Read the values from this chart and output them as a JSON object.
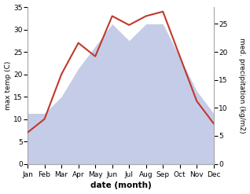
{
  "months": [
    "Jan",
    "Feb",
    "Mar",
    "Apr",
    "May",
    "Jun",
    "Jul",
    "Aug",
    "Sep",
    "Oct",
    "Nov",
    "Dec"
  ],
  "month_indices": [
    1,
    2,
    3,
    4,
    5,
    6,
    7,
    8,
    9,
    10,
    11,
    12
  ],
  "temperature": [
    7,
    10,
    20,
    27,
    24,
    33,
    31,
    33,
    34,
    24,
    14,
    9
  ],
  "precipitation": [
    9,
    9,
    12,
    17,
    21,
    25,
    22,
    25,
    25,
    19,
    13,
    9
  ],
  "temp_color": "#c0392b",
  "precip_fill_color": "#c5cce8",
  "temp_ylim": [
    0,
    35
  ],
  "precip_ylim": [
    0,
    28
  ],
  "temp_yticks": [
    0,
    5,
    10,
    15,
    20,
    25,
    30,
    35
  ],
  "precip_yticks": [
    0,
    5,
    10,
    15,
    20,
    25
  ],
  "ylabel_left": "max temp (C)",
  "ylabel_right": "med. precipitation (kg/m2)",
  "xlabel": "date (month)",
  "fig_width": 3.18,
  "fig_height": 2.47,
  "dpi": 100,
  "label_fontsize": 6.5,
  "xlabel_fontsize": 7.5,
  "ylabel_fontsize": 6.5,
  "tick_labelsize": 6.5,
  "linewidth": 1.5
}
